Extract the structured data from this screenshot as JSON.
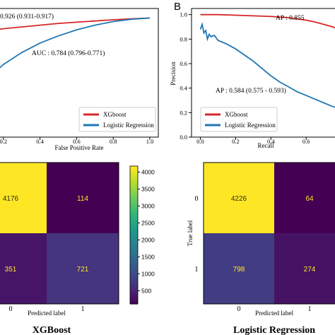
{
  "chart_data": [
    {
      "type": "line",
      "panel_label": "",
      "xlabel": "False Positive Rate",
      "ylabel": "",
      "xlim": [
        0,
        1
      ],
      "ylim": [
        0,
        1
      ],
      "xticks": [
        "0.2",
        "0.4",
        "0.6",
        "0.8",
        "1.0"
      ],
      "yticks": [],
      "grid": false,
      "legend": "bottom-right",
      "annotations": [
        "0.926 (0.931-0.917)",
        "AUC : 0.784 (0.796-0.771)"
      ],
      "series": [
        {
          "name": "XGboost",
          "color": "#d62728",
          "x": [
            0.0,
            0.05,
            0.1,
            0.15,
            0.2,
            0.3,
            0.4,
            0.5,
            0.6,
            0.7,
            0.8,
            0.9,
            0.95,
            1.0
          ],
          "y": [
            0.86,
            0.875,
            0.89,
            0.9,
            0.91,
            0.925,
            0.94,
            0.955,
            0.965,
            0.975,
            0.985,
            0.993,
            0.997,
            1.0
          ]
        },
        {
          "name": "Logistic Regression",
          "color": "#1f77b4",
          "x": [
            0.0,
            0.05,
            0.1,
            0.15,
            0.2,
            0.3,
            0.4,
            0.5,
            0.6,
            0.7,
            0.8,
            0.9,
            0.95,
            1.0
          ],
          "y": [
            0.2,
            0.33,
            0.45,
            0.54,
            0.61,
            0.71,
            0.79,
            0.85,
            0.9,
            0.94,
            0.97,
            0.99,
            0.995,
            1.0
          ]
        }
      ]
    },
    {
      "type": "line",
      "panel_label": "B",
      "xlabel": "Recall",
      "ylabel": "Precision",
      "xlim": [
        -0.05,
        1.0
      ],
      "ylim": [
        0.0,
        1.05
      ],
      "xticks": [
        "0.0",
        "0.2",
        "0.4",
        "0.6",
        "0.8"
      ],
      "yticks": [
        "0.0",
        "0.2",
        "0.4",
        "0.6",
        "0.8",
        "1.0"
      ],
      "grid": false,
      "legend": "bottom-right",
      "annotations": [
        "AP : 0.855",
        "AP : 0.584 (0.575 - 0.593)"
      ],
      "series": [
        {
          "name": "XGboost",
          "color": "#d62728",
          "x": [
            0.0,
            0.1,
            0.2,
            0.3,
            0.4,
            0.5,
            0.55,
            0.6,
            0.65,
            0.7,
            0.75,
            0.8,
            0.85,
            0.9,
            0.95,
            1.0
          ],
          "y": [
            1.0,
            1.0,
            0.995,
            0.99,
            0.985,
            0.975,
            0.965,
            0.955,
            0.94,
            0.92,
            0.9,
            0.87,
            0.83,
            0.78,
            0.72,
            0.65
          ]
        },
        {
          "name": "Logistic Regression",
          "color": "#1f77b4",
          "x": [
            0.0,
            0.01,
            0.02,
            0.03,
            0.04,
            0.05,
            0.06,
            0.08,
            0.1,
            0.15,
            0.2,
            0.25,
            0.3,
            0.35,
            0.4,
            0.45,
            0.5,
            0.55,
            0.6,
            0.65,
            0.7,
            0.75,
            0.8,
            0.85,
            0.9,
            0.95,
            1.0
          ],
          "y": [
            0.88,
            0.92,
            0.85,
            0.87,
            0.8,
            0.84,
            0.82,
            0.83,
            0.79,
            0.76,
            0.72,
            0.67,
            0.62,
            0.56,
            0.5,
            0.45,
            0.41,
            0.37,
            0.34,
            0.31,
            0.28,
            0.25,
            0.23,
            0.2,
            0.18,
            0.16,
            0.14
          ]
        }
      ]
    },
    {
      "type": "heatmap",
      "title": "XGBoost",
      "xlabel": "Predicted label",
      "ylabel": "",
      "xticks": [
        "0",
        "1"
      ],
      "yticks": [
        "0",
        "1"
      ],
      "matrix": [
        [
          4176,
          114
        ],
        [
          351,
          721
        ]
      ],
      "colorbar": {
        "ticks": [
          "500",
          "1000",
          "1500",
          "2000",
          "2500",
          "3000",
          "3500",
          "4000"
        ],
        "min": 114,
        "max": 4176
      },
      "cmap": "viridis"
    },
    {
      "type": "heatmap",
      "title": "Logistic Regression",
      "xlabel": "Predicted label",
      "ylabel": "True label",
      "xticks": [
        "0",
        "1"
      ],
      "yticks": [
        "0",
        "1"
      ],
      "matrix": [
        [
          4226,
          64
        ],
        [
          798,
          274
        ]
      ],
      "cmap": "viridis"
    }
  ]
}
